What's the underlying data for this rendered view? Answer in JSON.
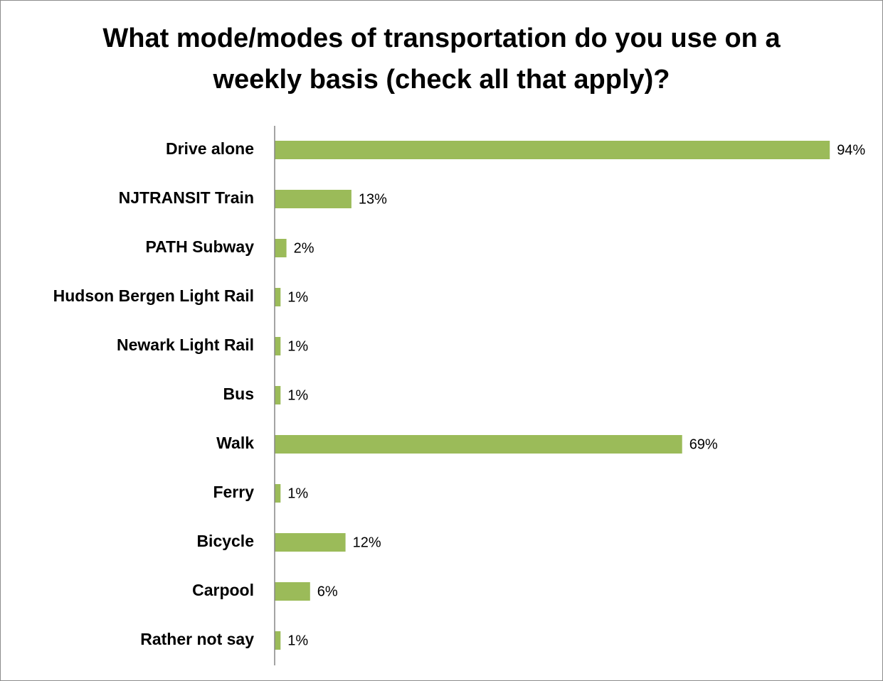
{
  "chart_data": {
    "type": "hbar",
    "title": "What mode/modes of transportation do you use on a weekly basis (check all that apply)?",
    "categories": [
      "Drive alone",
      "NJTRANSIT Train",
      "PATH Subway",
      "Hudson Bergen Light Rail",
      "Newark Light Rail",
      "Bus",
      "Walk",
      "Ferry",
      "Bicycle",
      "Carpool",
      "Rather not say"
    ],
    "values": [
      94,
      13,
      2,
      1,
      1,
      1,
      69,
      1,
      12,
      6,
      1
    ],
    "value_labels": [
      "94%",
      "13%",
      "2%",
      "1%",
      "1%",
      "1%",
      "69%",
      "1%",
      "12%",
      "6%",
      "1%"
    ],
    "color": "#9bbb59",
    "xlim": [
      0,
      100
    ]
  }
}
